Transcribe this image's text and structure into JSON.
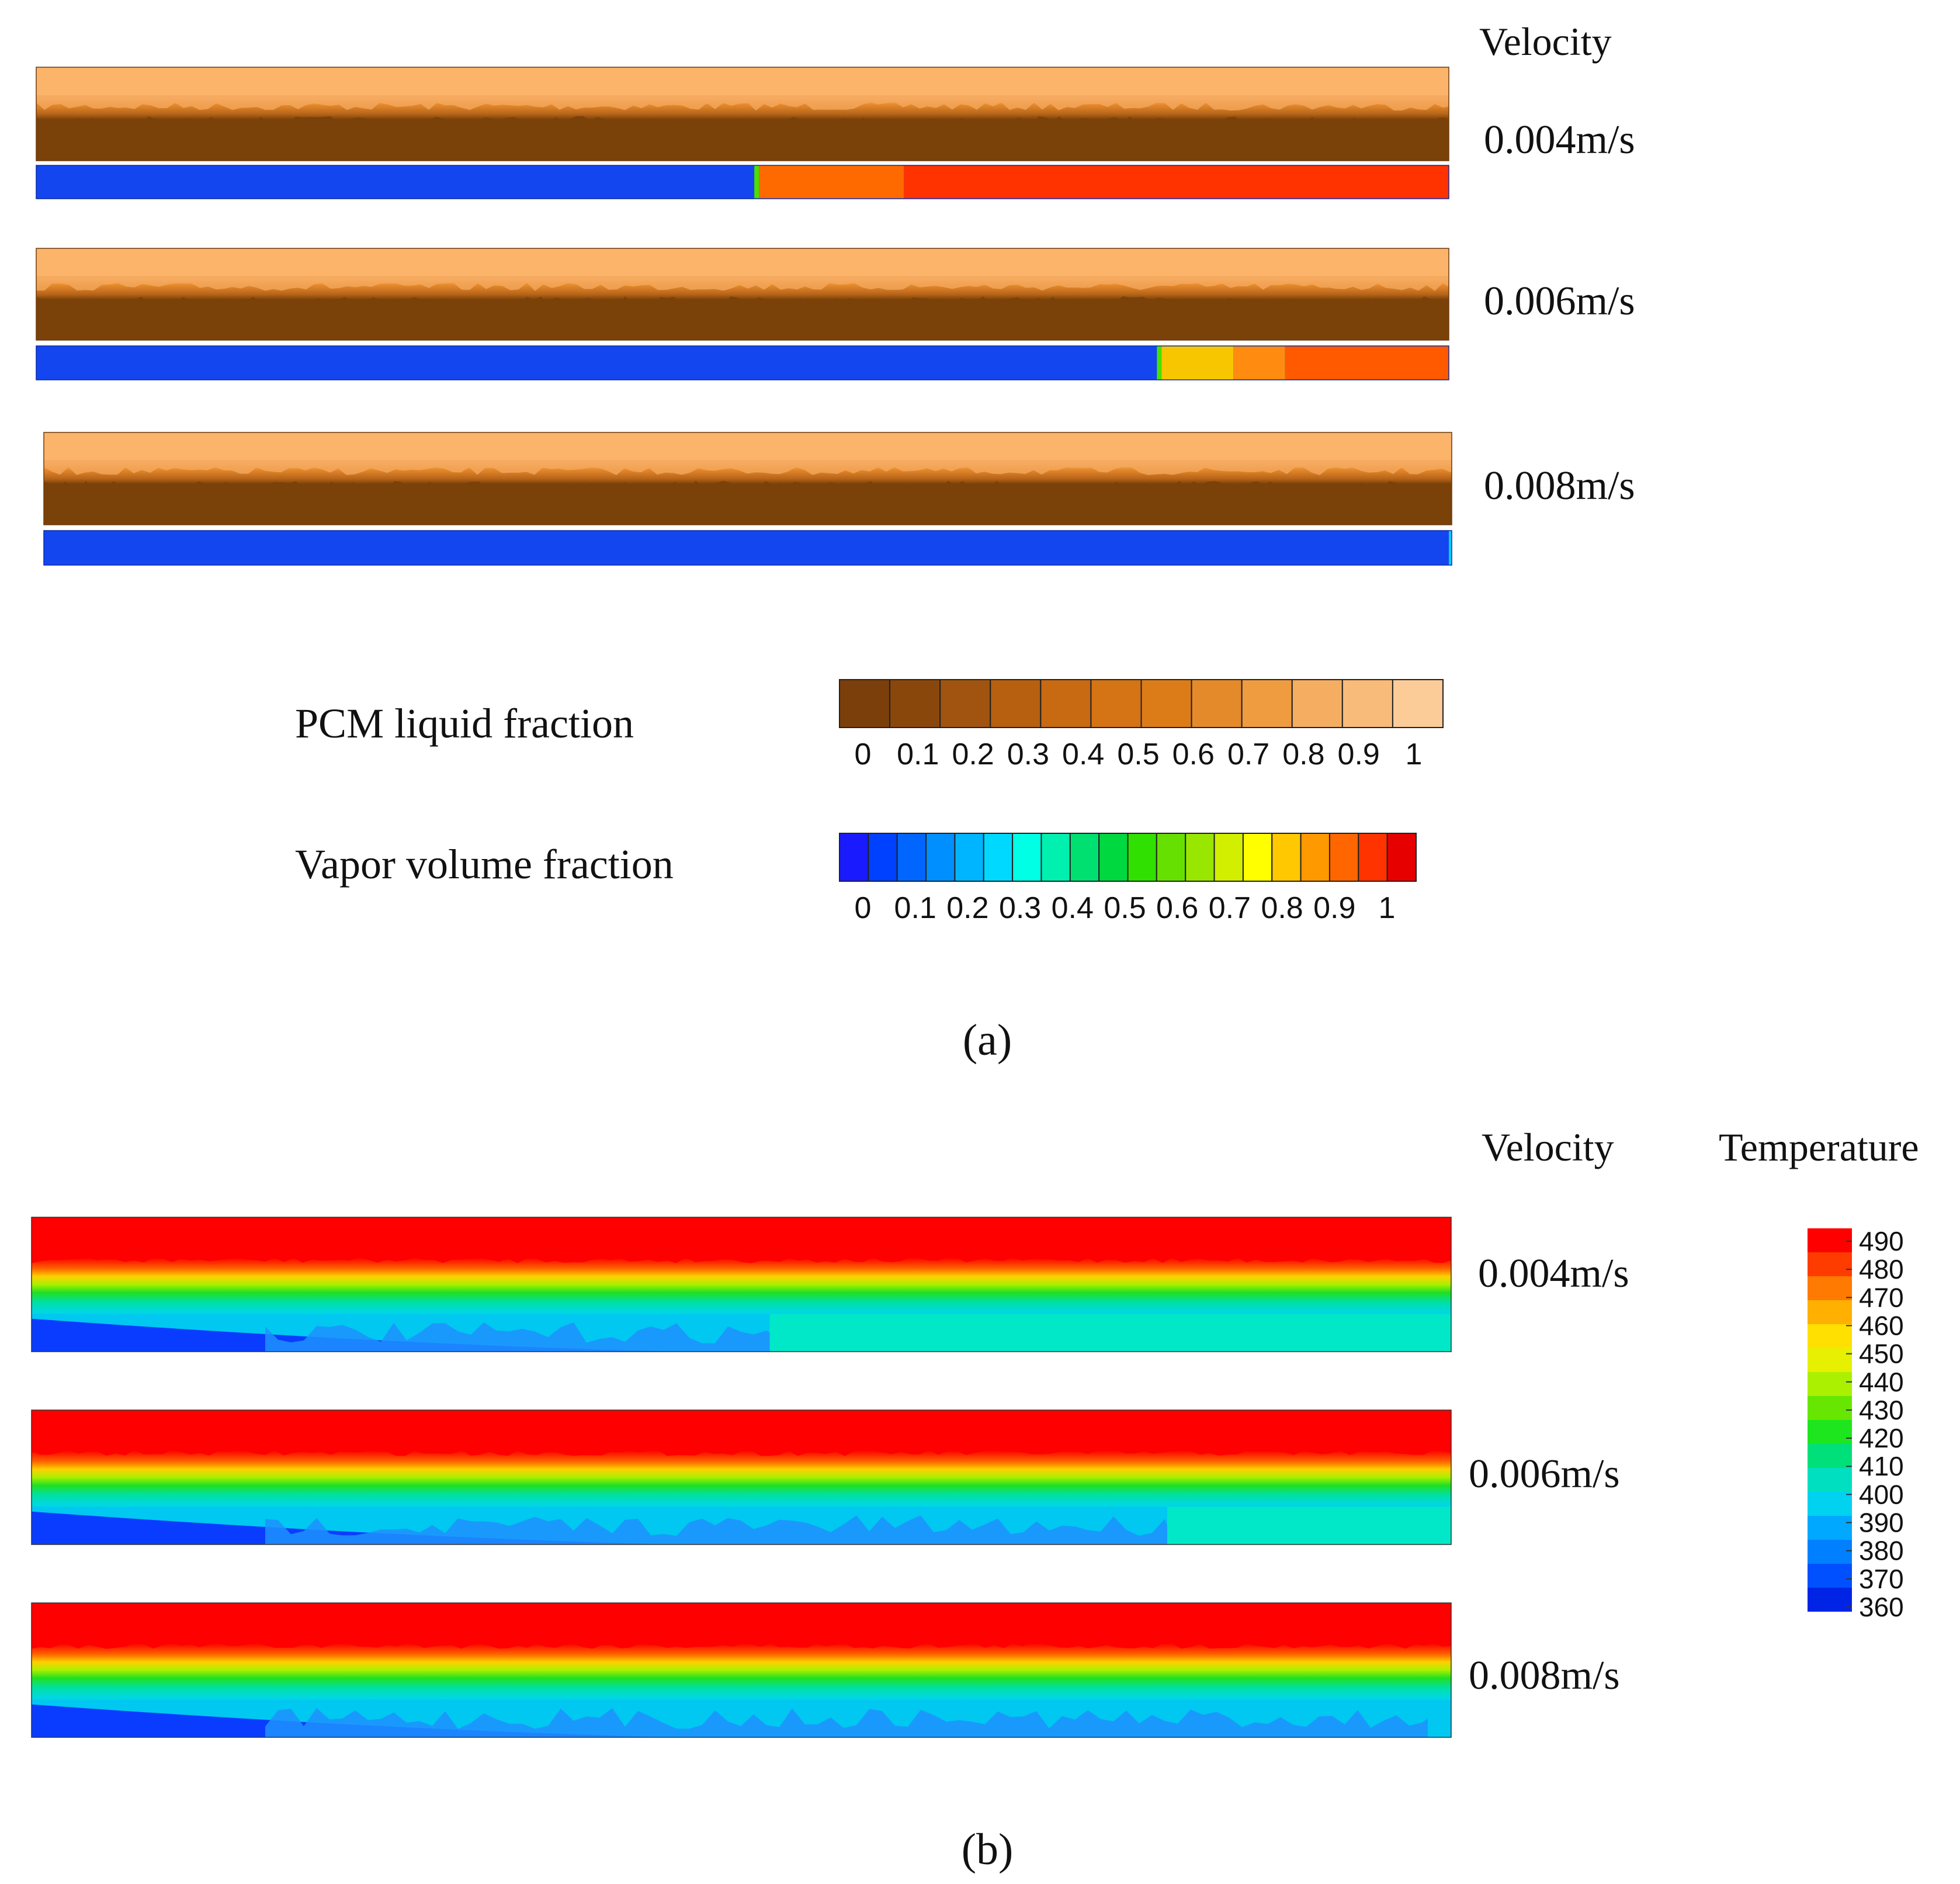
{
  "panel_a": {
    "header": "Velocity",
    "cases": [
      {
        "velocity": "0.004m/s",
        "vapor_front_fraction": 0.51,
        "vapor_stages": [
          "#ff6a00",
          "#ff3300"
        ]
      },
      {
        "velocity": "0.006m/s",
        "vapor_front_fraction": 0.795,
        "vapor_stages": [
          "#f7c600",
          "#ff8c10",
          "#ff5a00"
        ]
      },
      {
        "velocity": "0.008m/s",
        "vapor_front_fraction": 0.999,
        "vapor_stages": []
      }
    ],
    "legend_pcm": {
      "title": "PCM liquid fraction",
      "ticks": [
        "0",
        "0.1",
        "0.2",
        "0.3",
        "0.4",
        "0.5",
        "0.6",
        "0.7",
        "0.8",
        "0.9",
        "1"
      ],
      "colors": [
        "#7a3f0a",
        "#8a470c",
        "#a0540f",
        "#b66010",
        "#c76a12",
        "#d47414",
        "#dc7c18",
        "#e58a2a",
        "#ef9c40",
        "#f5ad62",
        "#f9bb79",
        "#fbcc98"
      ]
    },
    "legend_vapor": {
      "title": "Vapor volume fraction",
      "ticks": [
        "0",
        "0.1",
        "0.2",
        "0.3",
        "0.4",
        "0.5",
        "0.6",
        "0.7",
        "0.8",
        "0.9",
        "1"
      ],
      "colors": [
        "#1a1aff",
        "#0040ff",
        "#0066ff",
        "#008fff",
        "#00b5ff",
        "#00d9ff",
        "#00ffe5",
        "#00f0b0",
        "#00e070",
        "#00d840",
        "#2fe000",
        "#66e000",
        "#99e600",
        "#d2ef00",
        "#ffff00",
        "#ffc800",
        "#ff9900",
        "#ff6600",
        "#ff3300",
        "#e60000"
      ]
    },
    "caption": "(a)"
  },
  "panel_b": {
    "header_velocity": "Velocity",
    "header_temperature": "Temperature",
    "cases": [
      {
        "velocity": "0.004m/s",
        "transition_fraction": 0.52
      },
      {
        "velocity": "0.006m/s",
        "transition_fraction": 0.8
      },
      {
        "velocity": "0.008m/s",
        "transition_fraction": 1.0
      }
    ],
    "legend_temperature": {
      "labels": [
        "490",
        "480",
        "470",
        "460",
        "450",
        "440",
        "430",
        "420",
        "410",
        "400",
        "390",
        "380",
        "370",
        "360"
      ],
      "colors": [
        "#ff0000",
        "#ff3c00",
        "#ff7a00",
        "#ffb000",
        "#ffe000",
        "#e6f000",
        "#aaf000",
        "#66e600",
        "#1ee61e",
        "#00e07a",
        "#00e0c0",
        "#00d2f0",
        "#00a8ff",
        "#0080ff",
        "#0050ff",
        "#0024e6"
      ]
    },
    "caption": "(b)"
  }
}
